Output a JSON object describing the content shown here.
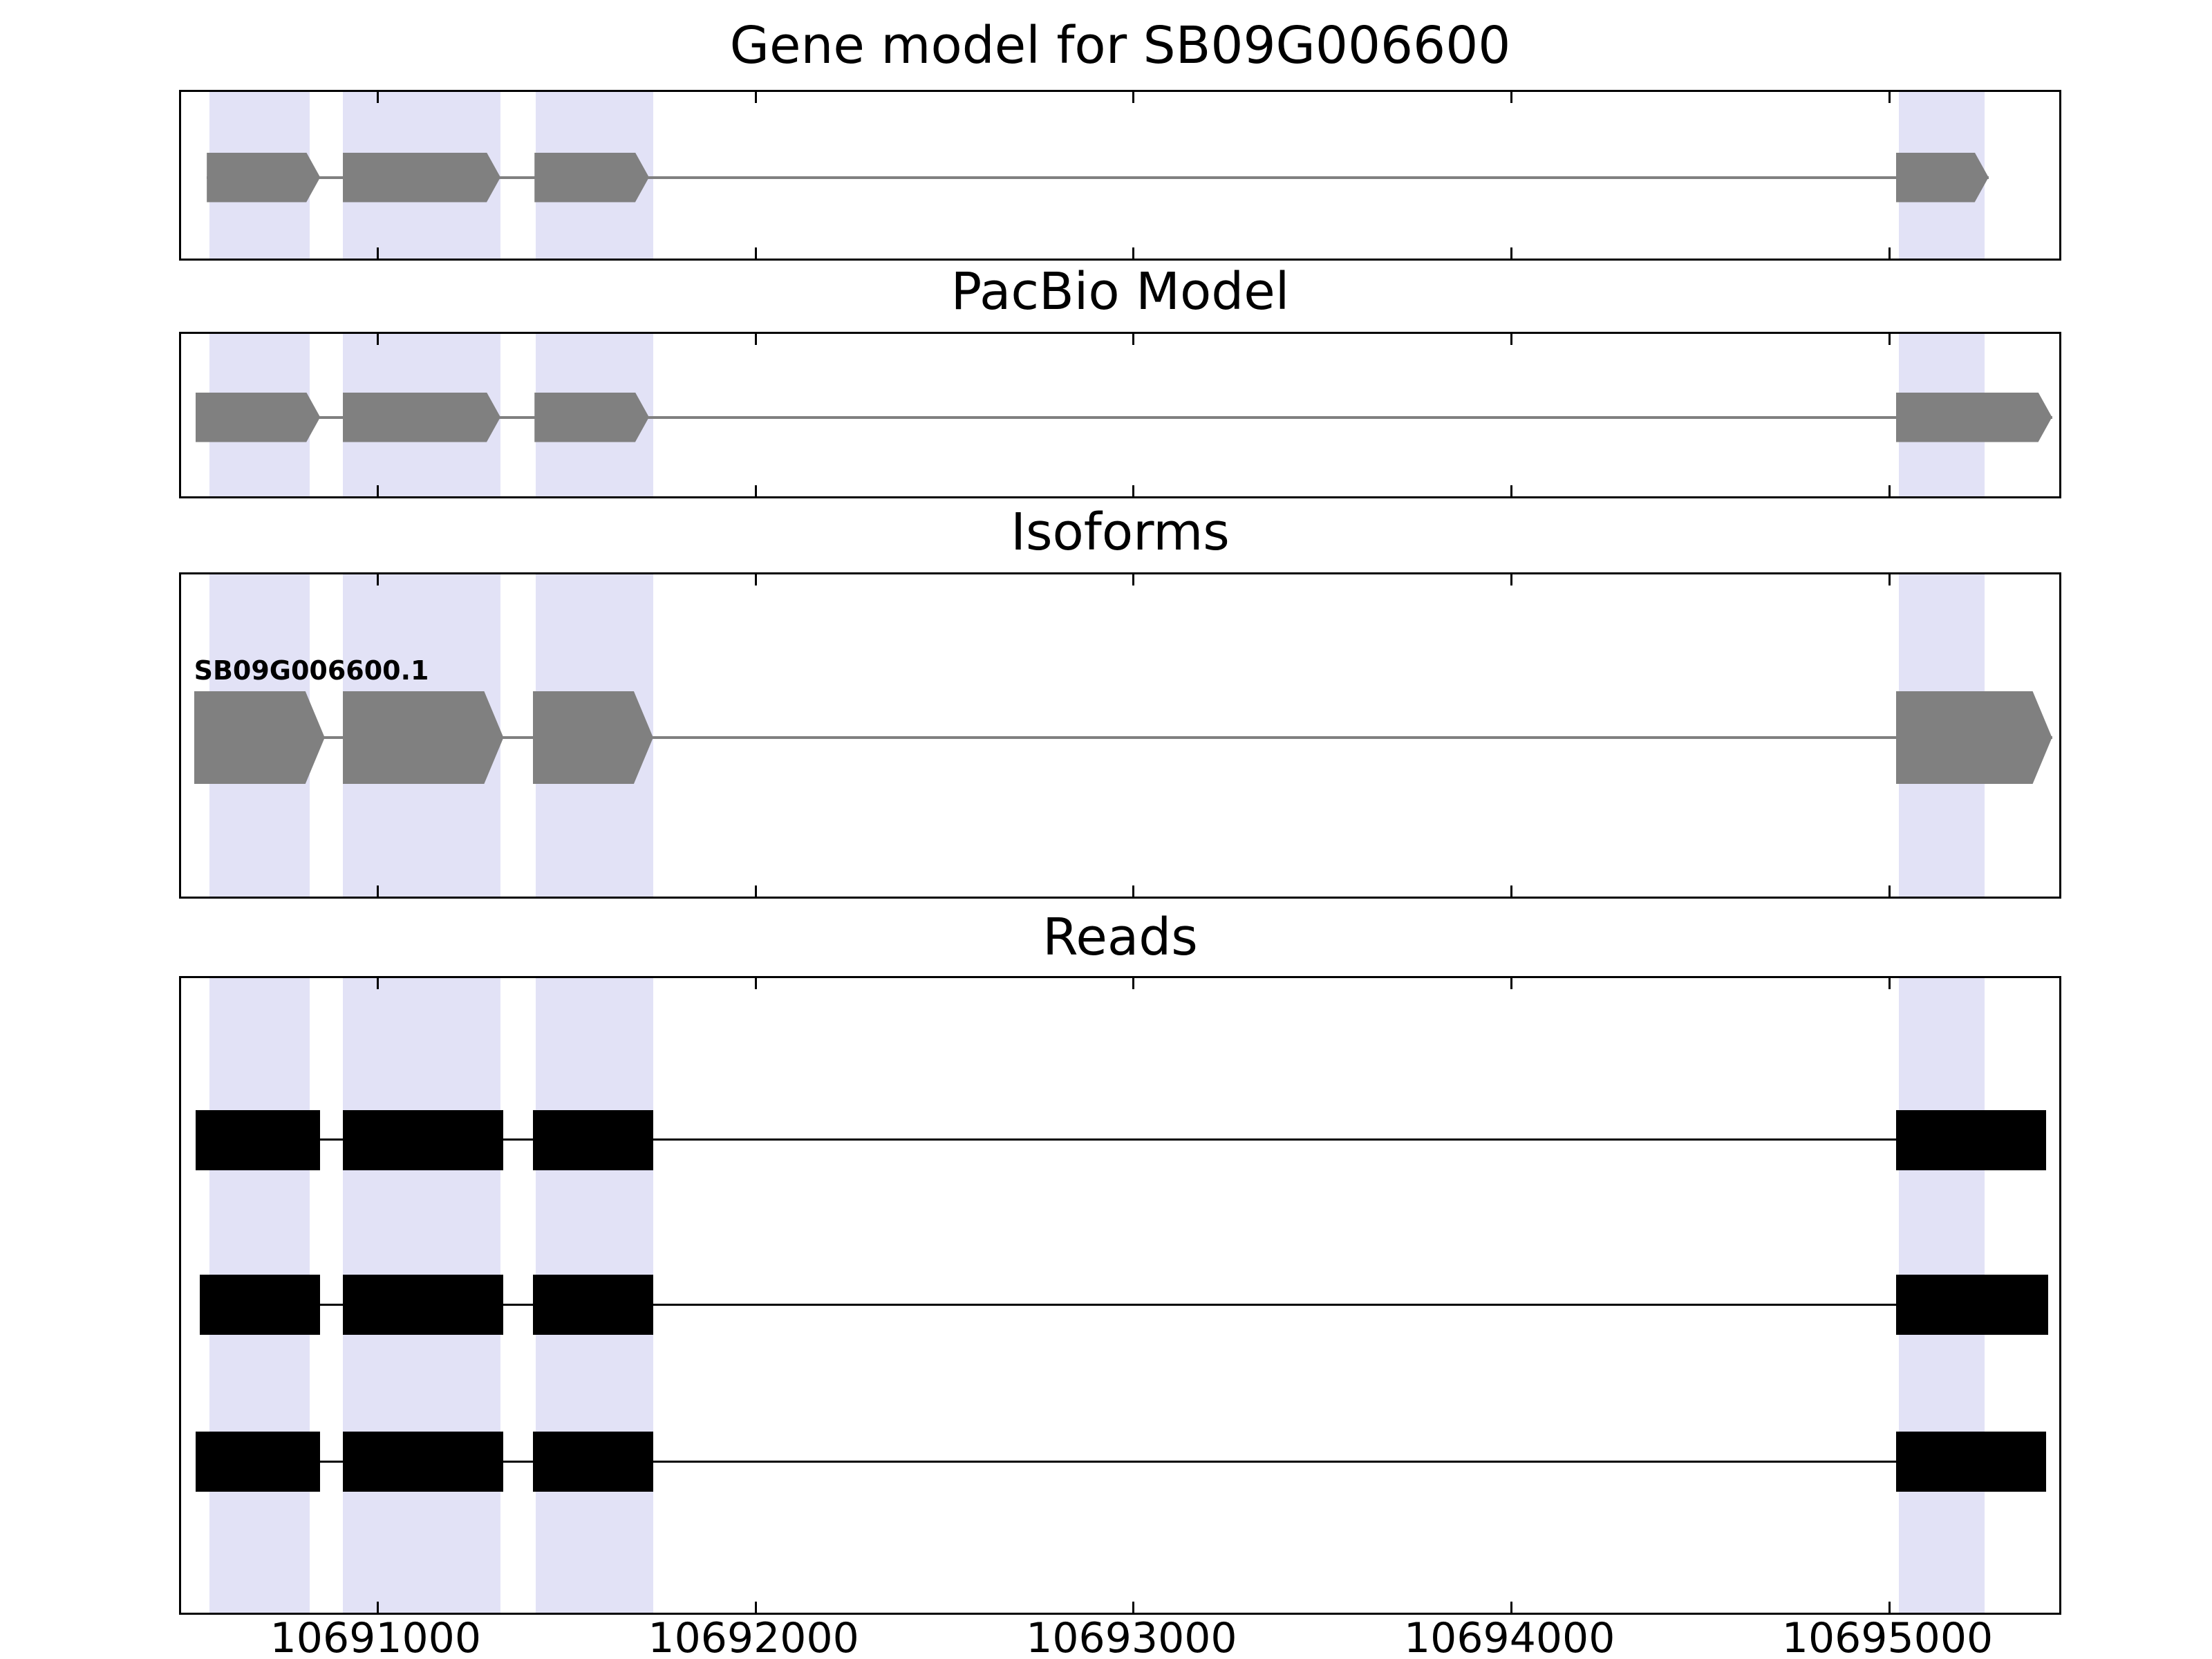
{
  "figure": {
    "background": "#ffffff",
    "highlight_color": "#e2e2f6",
    "exon_color": "#808080",
    "intron_line_color": "#808080",
    "read_color": "#000000",
    "border_color": "#000000"
  },
  "chart_data": {
    "type": "gene-tracks",
    "xlim": [
      10690480,
      10695460
    ],
    "xticks": [
      10691000,
      10692000,
      10693000,
      10694000,
      10695000
    ],
    "xtick_labels": [
      "10691000",
      "10692000",
      "10693000",
      "10694000",
      "10695000"
    ],
    "highlight_regions": [
      [
        10690555,
        10690820
      ],
      [
        10690908,
        10691325
      ],
      [
        10691418,
        10691729
      ],
      [
        10695025,
        10695251
      ]
    ],
    "panels": [
      {
        "title": "Gene model for SB09G006600",
        "kind": "model",
        "exons": [
          [
            10690548,
            10690848
          ],
          [
            10690908,
            10691325
          ],
          [
            10691415,
            10691718
          ],
          [
            10695017,
            10695262
          ]
        ]
      },
      {
        "title": "PacBio Model",
        "kind": "model",
        "exons": [
          [
            10690518,
            10690848
          ],
          [
            10690908,
            10691325
          ],
          [
            10691415,
            10691718
          ],
          [
            10695017,
            10695430
          ]
        ]
      },
      {
        "title": "Isoforms",
        "kind": "isoforms",
        "isoforms": [
          {
            "label": "SB09G006600.1",
            "exons": [
              [
                10690514,
                10690860
              ],
              [
                10690908,
                10691333
              ],
              [
                10691410,
                10691729
              ],
              [
                10695017,
                10695430
              ]
            ]
          }
        ]
      },
      {
        "title": "Reads",
        "kind": "reads",
        "reads": [
          {
            "blocks": [
              [
                10690518,
                10690848
              ],
              [
                10690908,
                10691333
              ],
              [
                10691410,
                10691729
              ],
              [
                10695017,
                10695415
              ]
            ]
          },
          {
            "blocks": [
              [
                10690530,
                10690848
              ],
              [
                10690908,
                10691333
              ],
              [
                10691410,
                10691729
              ],
              [
                10695017,
                10695420
              ]
            ]
          },
          {
            "blocks": [
              [
                10690518,
                10690848
              ],
              [
                10690908,
                10691333
              ],
              [
                10691410,
                10691729
              ],
              [
                10695017,
                10695415
              ]
            ]
          }
        ]
      }
    ]
  }
}
